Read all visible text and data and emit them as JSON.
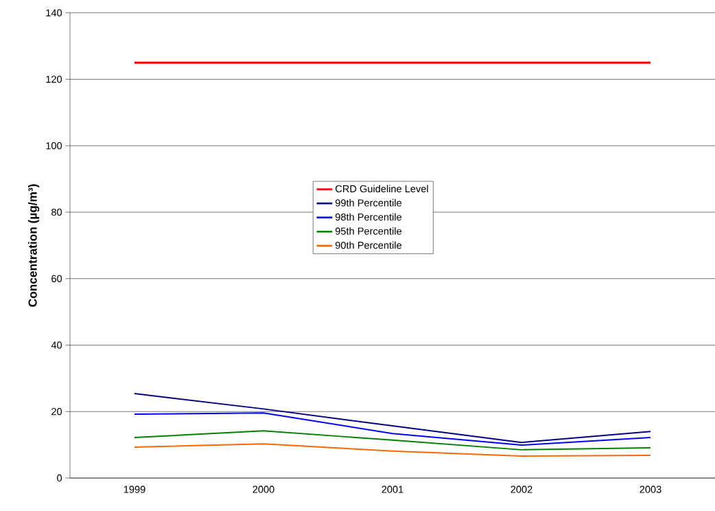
{
  "chart_data": {
    "type": "line",
    "ylabel": "Concentration (µg/m³)",
    "categories": [
      "1999",
      "2000",
      "2001",
      "2002",
      "2003"
    ],
    "series": [
      {
        "name": "CRD Guideline Level",
        "color": "#ff0000",
        "values": [
          125,
          125,
          125,
          125,
          125
        ]
      },
      {
        "name": "99th Percentile",
        "color": "#000080",
        "values": [
          25.4,
          20.8,
          15.7,
          10.7,
          14.0
        ]
      },
      {
        "name": "98th Percentile",
        "color": "#0000ff",
        "values": [
          19.2,
          19.6,
          13.4,
          9.9,
          12.2
        ]
      },
      {
        "name": "95th Percentile",
        "color": "#008000",
        "values": [
          12.2,
          14.2,
          11.4,
          8.5,
          9.1
        ]
      },
      {
        "name": "90th Percentile",
        "color": "#ff6600",
        "values": [
          9.3,
          10.3,
          8.1,
          6.6,
          6.8
        ]
      }
    ],
    "ylim": [
      0,
      140
    ],
    "yticks": [
      0,
      20,
      40,
      60,
      80,
      100,
      120,
      140
    ],
    "grid": "y",
    "legend": "center",
    "marker": "none",
    "line_style": "solid"
  }
}
